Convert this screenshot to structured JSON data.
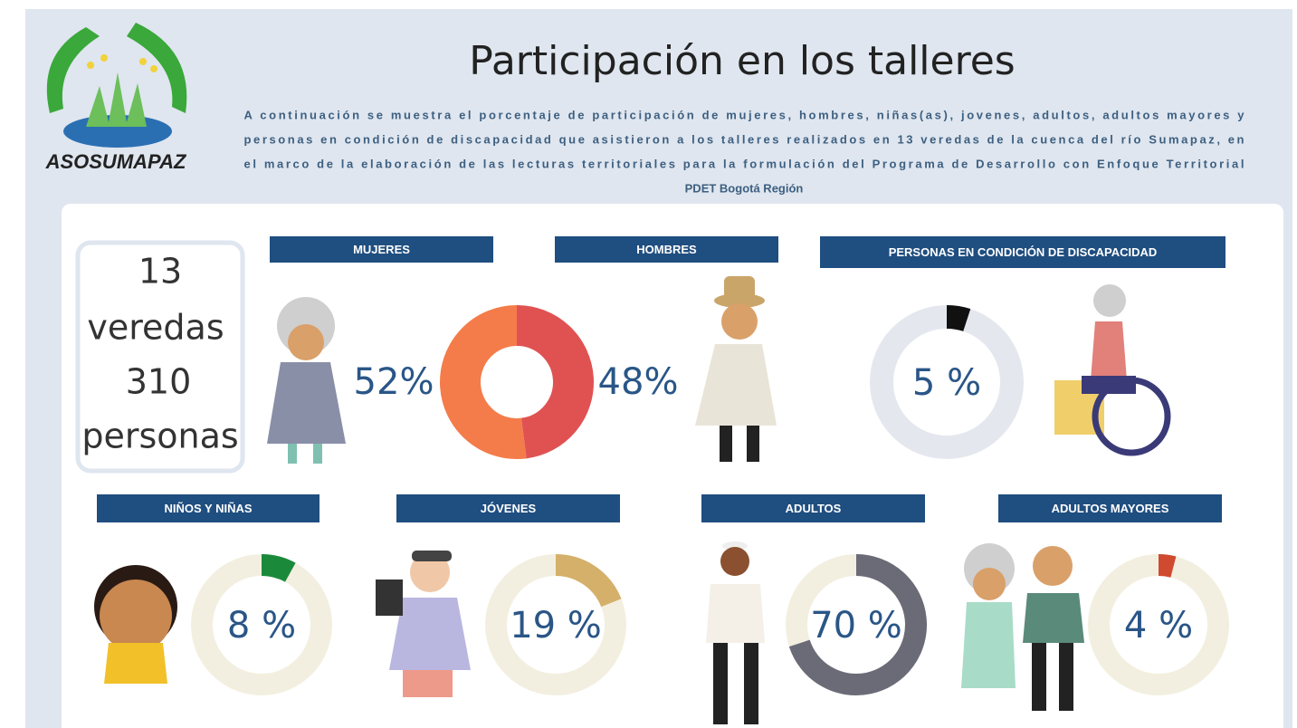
{
  "logo_text": "ASOSUMAPAZ",
  "title": "Participación en los talleres",
  "description": [
    "A continuación se muestra el porcentaje de participación de mujeres, hombres, niñas(as), jovenes, adultos, adultos mayores y",
    "personas en condición de discapacidad que asistieron a los talleres realizados en 13 veredas de la cuenca del río Sumapaz, en",
    "el marco de la elaboración de las lecturas territoriales para la formulación del Programa de Desarrollo con Enfoque Territorial",
    "PDET Bogotá Región"
  ],
  "summary": {
    "veredas": 13,
    "veredas_label": "veredas",
    "personas": 310,
    "personas_label": "personas"
  },
  "panels": [
    {
      "label": "MUJERES",
      "value": 52,
      "value_label": "52%",
      "color": "#f47c4a"
    },
    {
      "label": "HOMBRES",
      "value": 48,
      "value_label": "48%",
      "color": "#e05252"
    },
    {
      "label": "PERSONAS EN CONDICIÓN DE DISCAPACIDAD",
      "value": 5,
      "value_label": "5 %",
      "color": "#111111"
    },
    {
      "label": "NIÑOS Y NIÑAS",
      "value": 8,
      "value_label": "8 %",
      "color": "#1a8a3a"
    },
    {
      "label": "JÓVENES",
      "value": 19,
      "value_label": "19 %",
      "color": "#d4b06a"
    },
    {
      "label": "ADULTOS",
      "value": 70,
      "value_label": "70 %",
      "color": "#6b6b78"
    },
    {
      "label": "ADULTOS MAYORES",
      "value": 4,
      "value_label": "4 %",
      "color": "#d04a30"
    }
  ]
}
